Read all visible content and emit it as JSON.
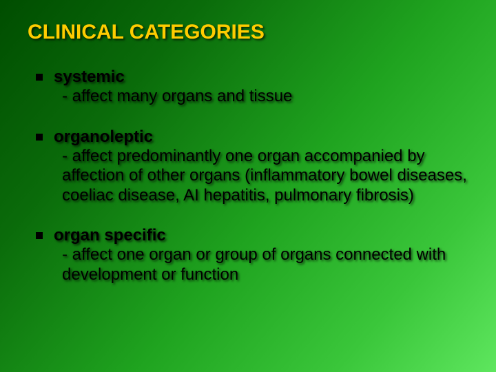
{
  "title": {
    "text": "CLINICAL CATEGORIES",
    "color": "#ffcc00",
    "fontsize": 30
  },
  "items": [
    {
      "heading": "systemic",
      "body": "- affect many organs and tissue"
    },
    {
      "heading": "organoleptic",
      "body": " - affect predominantly one organ accompanied by affection of other organs (inflammatory bowel diseases, coeliac disease, AI hepatitis, pulmonary fibrosis)"
    },
    {
      "heading": " organ specific",
      "body": " -  affect one organ or group of organs connected with development or function"
    }
  ],
  "style": {
    "heading_color": "#000000",
    "body_color": "#000000",
    "fontsize": 24,
    "bullet_color": "#000000"
  }
}
